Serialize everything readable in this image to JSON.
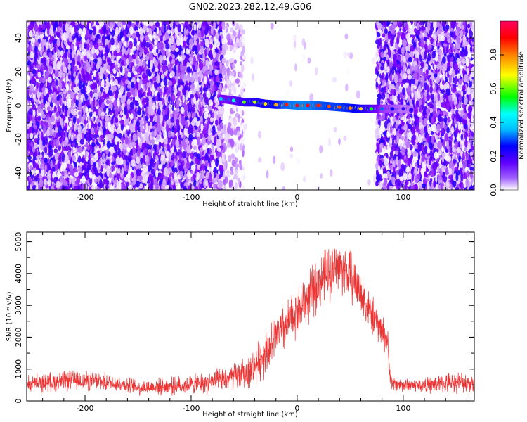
{
  "figure_title": "GN02.2023.282.12.49.G06",
  "chart_data": [
    {
      "type": "heatmap",
      "xlabel": "Height of straight line (km)",
      "ylabel": "Frequency (Hz)",
      "xlim": [
        -255,
        167
      ],
      "ylim": [
        -50,
        50
      ],
      "xticks": [
        -200,
        -100,
        0,
        100
      ],
      "xtick_labels": [
        "-200",
        "-100",
        "0",
        "100"
      ],
      "yticks": [
        -40,
        -20,
        0,
        20,
        40
      ],
      "ytick_labels": [
        "-40",
        "-20",
        "0",
        "20",
        "40"
      ],
      "colorbar": {
        "label": "Normalized spectral amplitude",
        "range": [
          0.0,
          1.0
        ],
        "ticks": [
          0.0,
          0.2,
          0.4,
          0.6,
          0.8
        ],
        "tick_labels": [
          "0.0",
          "0.2",
          "0.4",
          "0.6",
          "0.8"
        ],
        "colors": [
          "#ffffff",
          "#8000ff",
          "#0000ff",
          "#00ffff",
          "#00ff00",
          "#ffff00",
          "#ff8000",
          "#ff0000",
          "#ff0080"
        ]
      },
      "noise_regions": [
        {
          "x_from": -255,
          "x_to": -70,
          "density": "high"
        },
        {
          "x_from": -70,
          "x_to": -50,
          "density": "low"
        },
        {
          "x_from": -50,
          "x_to": 75,
          "density": "sparse"
        },
        {
          "x_from": 75,
          "x_to": 167,
          "density": "high"
        }
      ],
      "signal_trace": {
        "x": [
          -72,
          -60,
          -50,
          -40,
          -30,
          -20,
          -10,
          0,
          10,
          20,
          30,
          40,
          50,
          60,
          70,
          80,
          90,
          100,
          108
        ],
        "y": [
          4,
          3,
          2,
          2,
          1,
          0.5,
          0.5,
          0,
          0,
          0,
          -0.5,
          -1,
          -1.5,
          -2,
          -2,
          -2,
          -2,
          -2,
          -2.5
        ],
        "amplitude": [
          0.35,
          0.4,
          0.55,
          0.6,
          0.65,
          0.7,
          0.85,
          0.9,
          0.9,
          0.85,
          0.8,
          0.8,
          0.75,
          0.65,
          0.5,
          0.3,
          0.25,
          0.2,
          0.2
        ]
      }
    },
    {
      "type": "line",
      "xlabel": "Height of straight line (km)",
      "ylabel": "SNR (10 * v/v)",
      "xlim": [
        -255,
        167
      ],
      "ylim": [
        0,
        5300
      ],
      "xticks": [
        -200,
        -100,
        0,
        100
      ],
      "xtick_labels": [
        "-200",
        "-100",
        "0",
        "100"
      ],
      "yticks": [
        0,
        1000,
        2000,
        3000,
        4000,
        5000
      ],
      "ytick_labels": [
        "0",
        "1000",
        "2000",
        "3000",
        "4000",
        "5000"
      ],
      "series": [
        {
          "color": "#ee3333",
          "x": [
            -255,
            -230,
            -210,
            -190,
            -170,
            -150,
            -130,
            -110,
            -90,
            -70,
            -55,
            -45,
            -40,
            -35,
            -30,
            -25,
            -20,
            -15,
            -10,
            -5,
            0,
            5,
            10,
            15,
            20,
            25,
            30,
            35,
            40,
            45,
            50,
            55,
            60,
            65,
            70,
            75,
            80,
            85,
            88,
            90,
            100,
            110,
            120,
            130,
            140,
            150,
            167
          ],
          "y": [
            520,
            600,
            640,
            620,
            560,
            420,
            450,
            480,
            550,
            650,
            800,
            900,
            1100,
            1300,
            1550,
            1750,
            2000,
            2200,
            2350,
            2600,
            2800,
            3000,
            3200,
            3450,
            3650,
            3850,
            4050,
            4150,
            4200,
            4100,
            3950,
            3700,
            3400,
            3050,
            2700,
            2450,
            2200,
            1900,
            700,
            550,
            500,
            500,
            480,
            520,
            550,
            600,
            560
          ],
          "noise_amplitude": [
            250,
            280,
            300,
            280,
            250,
            220,
            240,
            260,
            300,
            350,
            420,
            480,
            550,
            600,
            650,
            650,
            700,
            700,
            720,
            700,
            720,
            740,
            760,
            760,
            760,
            780,
            800,
            800,
            780,
            760,
            740,
            700,
            650,
            600,
            560,
            520,
            500,
            450,
            250,
            220,
            200,
            200,
            220,
            250,
            280,
            300,
            280
          ]
        }
      ]
    }
  ]
}
